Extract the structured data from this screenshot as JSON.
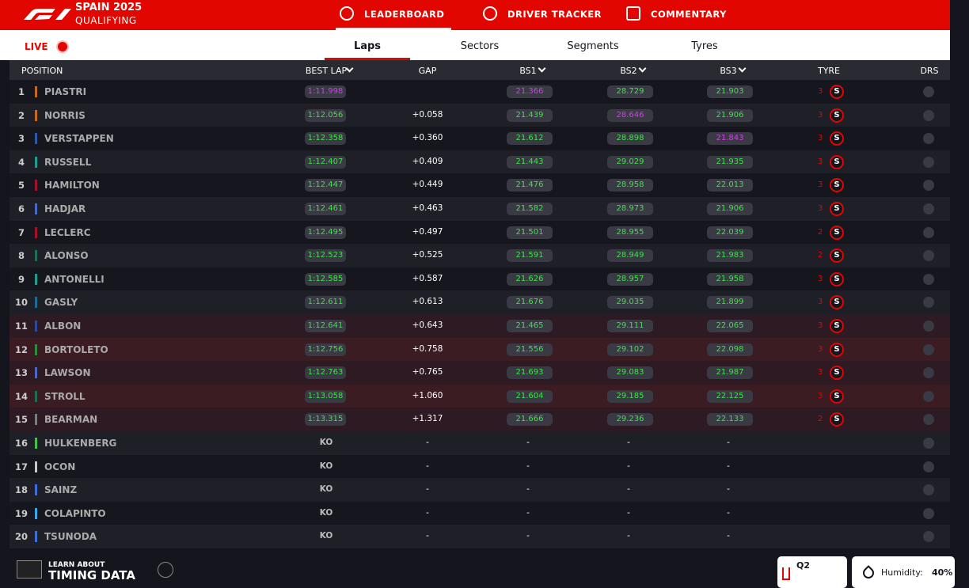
{
  "header": {
    "brand": "SPAIN 2025",
    "session": "QUALIFYING",
    "tabs": [
      "LEADERBOARD",
      "DRIVER TRACKER",
      "COMMENTARY"
    ]
  },
  "subnav": {
    "live": "LIVE",
    "tabs": [
      "Laps",
      "Sectors",
      "Segments",
      "Tyres"
    ]
  },
  "table": {
    "columns": [
      "POSITION",
      "BEST LAP",
      "GAP",
      "BS1",
      "BS2",
      "BS3",
      "TYRE",
      "DRS"
    ],
    "rows": [
      {
        "position": "1",
        "driver": "PIASTRI",
        "team_color": "#c86a1a",
        "best_lap": "1:11.998",
        "gap": null,
        "bs1": "21.366",
        "bs2": "28.729",
        "bs3": "21.903",
        "tyre_laps": "3",
        "compound": "S"
      },
      {
        "position": "2",
        "driver": "NORRIS",
        "team_color": "#c86a1a",
        "best_lap": "1:12.056",
        "gap": "+0.058",
        "bs1": "21.439",
        "bs2": "28.646",
        "bs3": "21.906",
        "tyre_laps": "3",
        "compound": "S"
      },
      {
        "position": "3",
        "driver": "VERSTAPPEN",
        "team_color": "#2f57a8",
        "best_lap": "1:12.358",
        "gap": "+0.360",
        "bs1": "21.612",
        "bs2": "28.898",
        "bs3": "21.843",
        "tyre_laps": "3",
        "compound": "S"
      },
      {
        "position": "4",
        "driver": "RUSSELL",
        "team_color": "#1b9e8c",
        "best_lap": "1:12.407",
        "gap": "+0.409",
        "bs1": "21.443",
        "bs2": "29.029",
        "bs3": "21.935",
        "tyre_laps": "3",
        "compound": "S"
      },
      {
        "position": "5",
        "driver": "HAMILTON",
        "team_color": "#a3122a",
        "best_lap": "1:12.447",
        "gap": "+0.449",
        "bs1": "21.476",
        "bs2": "28.958",
        "bs3": "22.013",
        "tyre_laps": "3",
        "compound": "S"
      },
      {
        "position": "6",
        "driver": "HADJAR",
        "team_color": "#4a68c4",
        "best_lap": "1:12.461",
        "gap": "+0.463",
        "bs1": "21.582",
        "bs2": "28.973",
        "bs3": "21.906",
        "tyre_laps": "3",
        "compound": "S"
      },
      {
        "position": "7",
        "driver": "LECLERC",
        "team_color": "#a3122a",
        "best_lap": "1:12.495",
        "gap": "+0.497",
        "bs1": "21.501",
        "bs2": "28.955",
        "bs3": "22.039",
        "tyre_laps": "2",
        "compound": "S"
      },
      {
        "position": "8",
        "driver": "ALONSO",
        "team_color": "#1d6e54",
        "best_lap": "1:12.523",
        "gap": "+0.525",
        "bs1": "21.591",
        "bs2": "28.949",
        "bs3": "21.983",
        "tyre_laps": "2",
        "compound": "S"
      },
      {
        "position": "9",
        "driver": "ANTONELLI",
        "team_color": "#1b9e8c",
        "best_lap": "1:12.585",
        "gap": "+0.587",
        "bs1": "21.626",
        "bs2": "28.957",
        "bs3": "21.958",
        "tyre_laps": "3",
        "compound": "S"
      },
      {
        "position": "10",
        "driver": "GASLY",
        "team_color": "#1c6c98",
        "best_lap": "1:12.611",
        "gap": "+0.613",
        "bs1": "21.676",
        "bs2": "29.035",
        "bs3": "21.899",
        "tyre_laps": "3",
        "compound": "S"
      },
      {
        "position": "11",
        "driver": "ALBON",
        "team_color": "#2b4a9e",
        "best_lap": "1:12.641",
        "gap": "+0.643",
        "bs1": "21.465",
        "bs2": "29.111",
        "bs3": "22.065",
        "tyre_laps": "3",
        "compound": "S",
        "background": "#2e1a22"
      },
      {
        "position": "12",
        "driver": "BORTOLETO",
        "team_color": "#2e8a3c",
        "best_lap": "1:12.756",
        "gap": "+0.758",
        "bs1": "21.556",
        "bs2": "29.102",
        "bs3": "22.098",
        "tyre_laps": "3",
        "compound": "S",
        "background": "#3a1c22"
      },
      {
        "position": "13",
        "driver": "LAWSON",
        "team_color": "#4a68c4",
        "best_lap": "1:12.763",
        "gap": "+0.765",
        "bs1": "21.693",
        "bs2": "29.083",
        "bs3": "21.987",
        "tyre_laps": "3",
        "compound": "S",
        "background": "#2e1a22"
      },
      {
        "position": "14",
        "driver": "STROLL",
        "team_color": "#1d6e54",
        "best_lap": "1:13.058",
        "gap": "+1.060",
        "bs1": "21.604",
        "bs2": "29.185",
        "bs3": "22.125",
        "tyre_laps": "3",
        "compound": "S",
        "background": "#3a1c22"
      },
      {
        "position": "15",
        "driver": "BEARMAN",
        "team_color": "#7a7d80",
        "best_lap": "1:13.315",
        "gap": "+1.317",
        "bs1": "21.666",
        "bs2": "29.236",
        "bs3": "22.133",
        "tyre_laps": "2",
        "compound": "S",
        "background": "#2e1a22"
      },
      {
        "position": "16",
        "driver": "HULKENBERG",
        "team_color": "#3ec24a",
        "best_lap": "KO",
        "gap": "-",
        "bs1": "-",
        "bs2": "-",
        "bs3": "-"
      },
      {
        "position": "17",
        "driver": "OCON",
        "team_color": "#c8c8c8",
        "best_lap": "KO",
        "gap": "-",
        "bs1": "-",
        "bs2": "-",
        "bs3": "-"
      },
      {
        "position": "18",
        "driver": "SAINZ",
        "team_color": "#3a6fd8",
        "best_lap": "KO",
        "gap": "-",
        "bs1": "-",
        "bs2": "-",
        "bs3": "-"
      },
      {
        "position": "19",
        "driver": "COLAPINTO",
        "team_color": "#3aa8e8",
        "best_lap": "KO",
        "gap": "-",
        "bs1": "-",
        "bs2": "-",
        "bs3": "-"
      },
      {
        "position": "20",
        "driver": "TSUNODA",
        "team_color": "#3a6fd8",
        "best_lap": "KO",
        "gap": "-",
        "bs1": "-",
        "bs2": "-",
        "bs3": "-"
      }
    ]
  },
  "footer": {
    "learn": "LEARN ABOUT",
    "timing": "TIMING DATA",
    "session": "Q2",
    "humidity_label": "Humidity:",
    "humidity": "40%"
  }
}
